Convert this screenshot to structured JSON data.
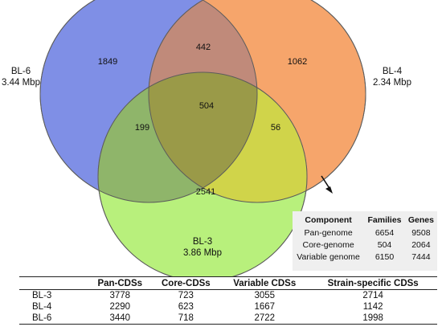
{
  "venn": {
    "sets": [
      {
        "key": "bl6",
        "name": "BL-6",
        "size": "3.44 Mbp",
        "color": "#7f8fe6"
      },
      {
        "key": "bl4",
        "name": "BL-4",
        "size": "2.34 Mbp",
        "color": "#f6a56b"
      },
      {
        "key": "bl3",
        "name": "BL-3",
        "size": "3.86 Mbp",
        "color": "#b8f07c"
      }
    ],
    "regions": {
      "bl6_only": "1849",
      "bl4_only": "1062",
      "bl3_only": "2541",
      "bl6_bl4": "442",
      "bl6_bl3": "199",
      "bl4_bl3": "56",
      "all": "504"
    }
  },
  "summary": {
    "headers": [
      "Component",
      "Families",
      "Genes"
    ],
    "rows": [
      [
        "Pan-genome",
        "6654",
        "9508"
      ],
      [
        "Core-genome",
        "504",
        "2064"
      ],
      [
        "Variable genome",
        "6150",
        "7444"
      ]
    ]
  },
  "cds_table": {
    "headers": [
      "",
      "Pan-CDSs",
      "Core-CDSs",
      "Variable CDSs",
      "Strain-specific CDSs"
    ],
    "rows": [
      [
        "BL-3",
        "3778",
        "723",
        "3055",
        "2714"
      ],
      [
        "BL-4",
        "2290",
        "623",
        "1667",
        "1142"
      ],
      [
        "BL-6",
        "3440",
        "718",
        "2722",
        "1998"
      ]
    ]
  }
}
